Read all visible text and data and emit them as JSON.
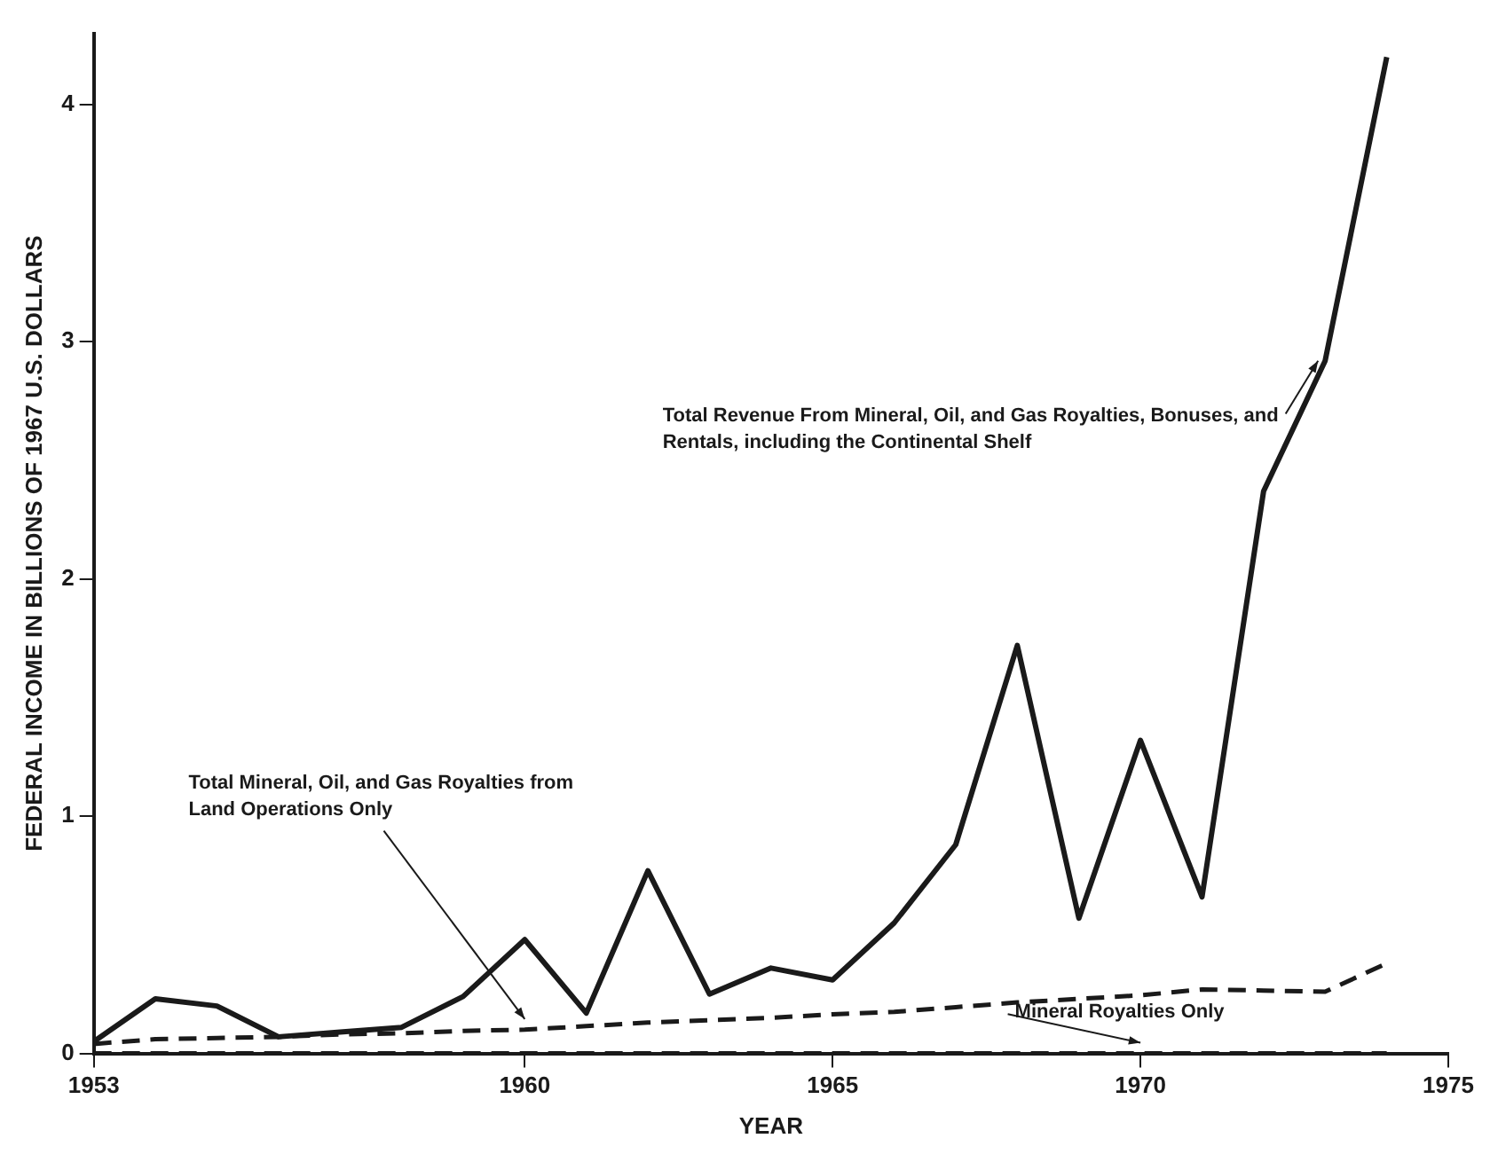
{
  "chart_data": {
    "type": "line",
    "xlabel": "YEAR",
    "ylabel": "FEDERAL INCOME IN BILLIONS OF 1967 U.S. DOLLARS",
    "x": [
      1953,
      1954,
      1955,
      1956,
      1957,
      1958,
      1959,
      1960,
      1961,
      1962,
      1963,
      1964,
      1965,
      1966,
      1967,
      1968,
      1969,
      1970,
      1971,
      1972,
      1973,
      1974
    ],
    "xlim": [
      1953,
      1975
    ],
    "xticks": [
      1953,
      1960,
      1965,
      1970,
      1975
    ],
    "ylim": [
      0,
      4.3
    ],
    "yticks": [
      0,
      1,
      2,
      3,
      4
    ],
    "grid": false,
    "legend": false,
    "marker": "none",
    "series": [
      {
        "name": "Total Revenue From Mineral, Oil, and Gas Royalties, Bonuses, and Rentals, including the Continental Shelf",
        "color": "#1a1a1a",
        "line_style": "solid",
        "values": [
          0.05,
          0.23,
          0.2,
          0.07,
          0.09,
          0.11,
          0.24,
          0.48,
          0.17,
          0.77,
          0.25,
          0.36,
          0.31,
          0.55,
          0.88,
          1.72,
          0.57,
          1.32,
          0.66,
          2.37,
          2.92,
          4.2
        ]
      },
      {
        "name": "Total Mineral, Oil, and Gas Royalties from Land Operations Only",
        "color": "#1a1a1a",
        "line_style": "dashed",
        "values": [
          0.04,
          0.06,
          0.065,
          0.07,
          0.08,
          0.085,
          0.095,
          0.1,
          0.115,
          0.13,
          0.14,
          0.15,
          0.165,
          0.175,
          0.195,
          0.215,
          0.23,
          0.245,
          0.27,
          0.265,
          0.26,
          0.38
        ]
      },
      {
        "name": "Mineral Royalties Only",
        "color": "#1a1a1a",
        "line_style": "dashed",
        "values": [
          0,
          0,
          0,
          0,
          0,
          0,
          0,
          0,
          0,
          0,
          0,
          0,
          0,
          0,
          0,
          0,
          0,
          0,
          0,
          0,
          0,
          0
        ]
      }
    ]
  }
}
